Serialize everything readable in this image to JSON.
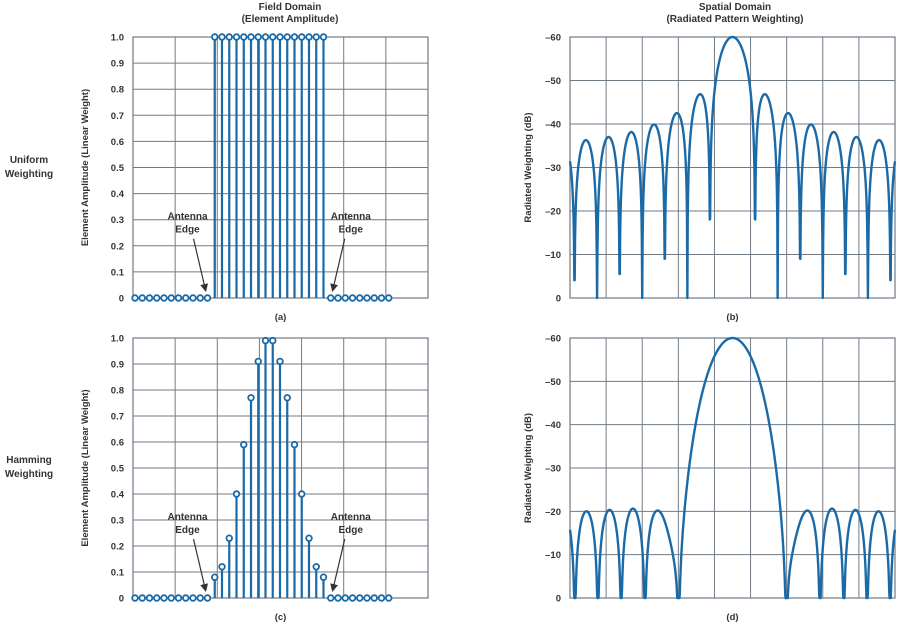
{
  "headers": {
    "field_line1": "Field Domain",
    "field_line2": "(Element Amplitude)",
    "spatial_line1": "Spatial Domain",
    "spatial_line2": "(Radiated Pattern Weighting)"
  },
  "rows": {
    "uniform_line1": "Uniform",
    "uniform_line2": "Weighting",
    "hamming_line1": "Hamming",
    "hamming_line2": "Weighting"
  },
  "annotation": {
    "line1": "Antenna",
    "line2": "Edge"
  },
  "colors": {
    "series": "#1a6aa8",
    "grid": "#707a85"
  },
  "chart_data": [
    {
      "id": "a",
      "caption": "(a)",
      "type": "stem",
      "ylabel": "Element Amplitude (Linear Weight)",
      "ylim": [
        0,
        1.0
      ],
      "yticks": [
        "0",
        "0.1",
        "0.2",
        "0.3",
        "0.4",
        "0.5",
        "0.6",
        "0.7",
        "0.8",
        "0.9",
        "1.0"
      ],
      "n_positions": 36,
      "values": [
        0,
        0,
        0,
        0,
        0,
        0,
        0,
        0,
        0,
        0,
        0,
        1,
        1,
        1,
        1,
        1,
        1,
        1,
        1,
        1,
        1,
        1,
        1,
        1,
        1,
        1,
        1,
        0,
        0,
        0,
        0,
        0,
        0,
        0,
        0,
        0
      ]
    },
    {
      "id": "b",
      "caption": "(b)",
      "type": "line",
      "ylabel": "Radiated Weighting (dB)",
      "ylim": [
        -60,
        0
      ],
      "yticks": [
        "0",
        "–10",
        "–20",
        "–30",
        "–40",
        "–50",
        "–60"
      ],
      "x_range": [
        -0.9,
        0.9
      ],
      "weights": "uniform",
      "n_elements": 16
    },
    {
      "id": "c",
      "caption": "(c)",
      "type": "stem",
      "ylabel": "Element Amplitude (Linear Weight)",
      "ylim": [
        0,
        1.0
      ],
      "yticks": [
        "0",
        "0.1",
        "0.2",
        "0.3",
        "0.4",
        "0.5",
        "0.6",
        "0.7",
        "0.8",
        "0.9",
        "1.0"
      ],
      "n_positions": 36,
      "values": [
        0,
        0,
        0,
        0,
        0,
        0,
        0,
        0,
        0,
        0,
        0,
        0.08,
        0.12,
        0.23,
        0.4,
        0.59,
        0.77,
        0.91,
        0.99,
        0.99,
        0.91,
        0.77,
        0.59,
        0.4,
        0.23,
        0.12,
        0.08,
        0,
        0,
        0,
        0,
        0,
        0,
        0,
        0,
        0
      ]
    },
    {
      "id": "d",
      "caption": "(d)",
      "type": "line",
      "ylabel": "Radiated Weighting (dB)",
      "ylim": [
        -60,
        0
      ],
      "yticks": [
        "0",
        "–10",
        "–20",
        "–30",
        "–40",
        "–50",
        "–60"
      ],
      "x_range": [
        -0.9,
        0.9
      ],
      "weights": "hamming",
      "n_elements": 16
    }
  ]
}
